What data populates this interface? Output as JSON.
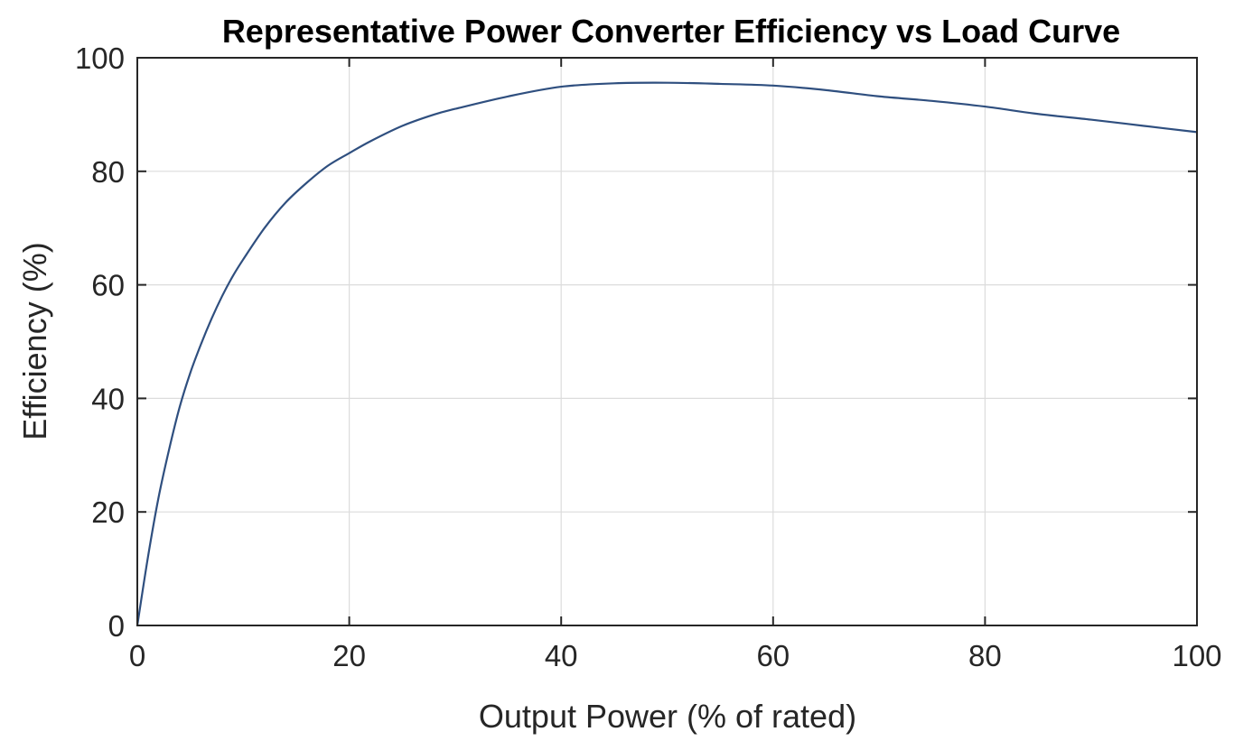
{
  "chart_data": {
    "type": "line",
    "title": "Representative Power Converter Efficiency vs Load Curve",
    "xlabel": "Output Power (% of rated)",
    "ylabel": "Efficiency (%)",
    "xlim": [
      0,
      100
    ],
    "ylim": [
      0,
      100
    ],
    "xticks": [
      0,
      20,
      40,
      60,
      80,
      100
    ],
    "yticks": [
      0,
      20,
      40,
      60,
      80,
      100
    ],
    "xtick_labels": [
      "0",
      "20",
      "40",
      "60",
      "80",
      "100"
    ],
    "ytick_labels": [
      "0",
      "20",
      "40",
      "60",
      "80",
      "100"
    ],
    "grid": true,
    "legend": "none",
    "colors": {
      "series": "#2f4f7f",
      "axis": "#262626",
      "grid": "#dcdcdc"
    },
    "series": [
      {
        "x": [
          0,
          1,
          2,
          3,
          4,
          5,
          6,
          7,
          8,
          9,
          10,
          12,
          14,
          16,
          18,
          20,
          22,
          25,
          28,
          30,
          35,
          40,
          45,
          50,
          55,
          60,
          65,
          70,
          75,
          80,
          85,
          90,
          95,
          100
        ],
        "values": [
          0,
          12,
          22.5,
          31,
          38.5,
          44.5,
          49.5,
          54,
          58,
          61.5,
          64.5,
          70,
          74.5,
          78,
          81,
          83.2,
          85.3,
          88,
          90,
          91,
          93.2,
          94.9,
          95.5,
          95.6,
          95.4,
          95.1,
          94.3,
          93.2,
          92.4,
          91.4,
          90.1,
          89.1,
          88.0,
          86.9
        ]
      }
    ]
  }
}
